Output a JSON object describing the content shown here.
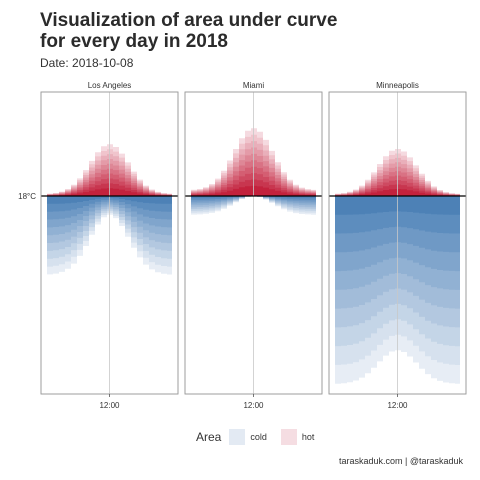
{
  "title": "Visualization of area under curve\nfor every day in 2018",
  "subtitle": "Date: 2018-10-08",
  "caption": "taraskaduk.com | @taraskaduk",
  "legend": {
    "title": "Area",
    "items": [
      {
        "label": "cold",
        "color": "#e3eaf3"
      },
      {
        "label": "hot",
        "color": "#f5dde2"
      }
    ]
  },
  "colors": {
    "hot_light": "#f3d4da",
    "hot_dark": "#c21f3a",
    "cold_light": "#e3eaf3",
    "cold_dark": "#4a7fb5",
    "line": "#000000",
    "panel_border": "#9a9a9a",
    "center_line": "#c8c8c8"
  },
  "chart_data": {
    "type": "area",
    "y_reference_label": "18°C",
    "x_tick_label": "12:00",
    "x_hours": [
      0,
      24
    ],
    "facets": [
      {
        "name": "Los Angeles",
        "peak_above": 0.55,
        "base_above": 0.02,
        "peak_below": 0.1,
        "base_below": 0.42,
        "min_below": 0.2
      },
      {
        "name": "Miami",
        "peak_above": 0.72,
        "base_above": 0.06,
        "peak_below": 0.0,
        "base_below": 0.1,
        "min_below": 0.05
      },
      {
        "name": "Minneapolis",
        "peak_above": 0.5,
        "base_above": 0.02,
        "peak_below": 0.82,
        "base_below": 1.0,
        "min_below": 0.5
      }
    ]
  }
}
